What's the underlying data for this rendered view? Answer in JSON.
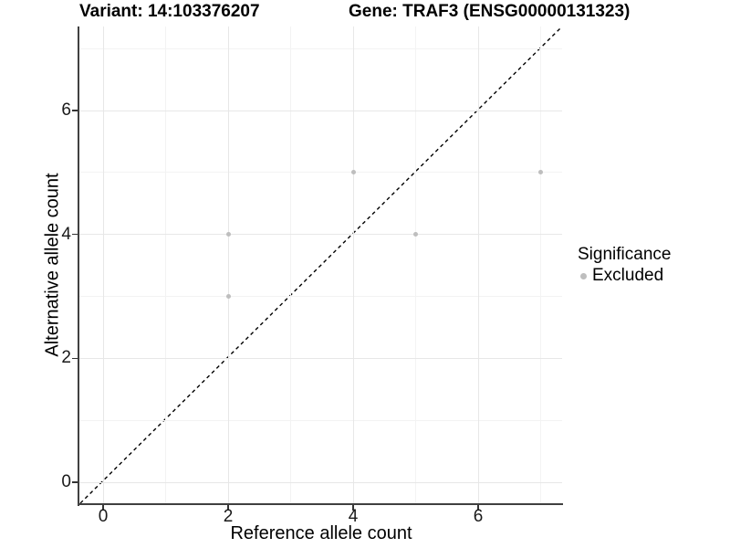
{
  "chart_data": {
    "type": "scatter",
    "titles": {
      "left": "Variant: 14:103376207",
      "right": "Gene: TRAF3 (ENSG00000131323)"
    },
    "xlabel": "Reference allele count",
    "ylabel": "Alternative allele count",
    "x_ticks": [
      0,
      2,
      4,
      6
    ],
    "y_ticks": [
      0,
      2,
      4,
      6
    ],
    "x_minor_gridlines": [
      1,
      3,
      5,
      7
    ],
    "y_minor_gridlines": [
      1,
      3,
      5,
      7
    ],
    "xlim": [
      -0.37,
      7.37
    ],
    "ylim": [
      -0.37,
      7.37
    ],
    "grid": true,
    "legend_position": "right",
    "reference_line": {
      "type": "identity",
      "slope": 1,
      "intercept": 0,
      "style": "dashed",
      "color": "#000000"
    },
    "series": [
      {
        "name": "Excluded",
        "color": "#bebebe",
        "points": [
          [
            2,
            3
          ],
          [
            2,
            4
          ],
          [
            4,
            5
          ],
          [
            5,
            4
          ],
          [
            7,
            5
          ]
        ]
      }
    ],
    "legend": {
      "title": "Significance",
      "items": [
        {
          "label": "Excluded",
          "color": "#bebebe",
          "marker": "dot"
        }
      ]
    }
  },
  "colors": {
    "background": "#ffffff",
    "grid_major": "#e7e7e7",
    "grid_minor": "#f3f3f3",
    "axis_line": "#404040",
    "tick": "#333333",
    "text": "#000000",
    "point": "#bebebe"
  }
}
